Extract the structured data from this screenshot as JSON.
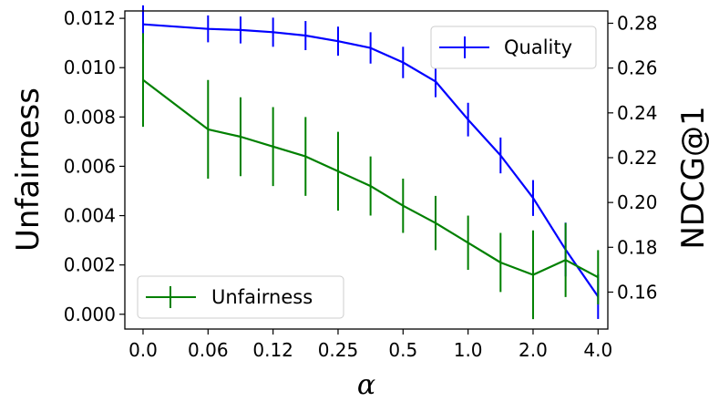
{
  "chart_data": {
    "type": "line",
    "xlabel": "α",
    "x_categories": [
      "0.0",
      "0.06",
      "0.12",
      "0.25",
      "0.5",
      "1.0",
      "2.0",
      "4.0"
    ],
    "y_left": {
      "label": "Unfairness",
      "lim": [
        -0.0006,
        0.0123
      ],
      "ticks": [
        "0.000",
        "0.002",
        "0.004",
        "0.006",
        "0.008",
        "0.010",
        "0.012"
      ]
    },
    "y_right": {
      "label": "NDCG@1",
      "lim": [
        0.1435,
        0.2855
      ],
      "ticks": [
        "0.16",
        "0.18",
        "0.20",
        "0.22",
        "0.24",
        "0.26",
        "0.28"
      ]
    },
    "series": [
      {
        "name": "Quality",
        "axis": "right",
        "color": "#0000ff",
        "legend_position": "upper-right",
        "x": [
          0,
          1,
          1.5,
          2,
          2.5,
          3,
          3.5,
          4,
          4.5,
          5,
          5.5,
          6,
          6.5,
          7
        ],
        "y": [
          0.2795,
          0.2775,
          0.277,
          0.276,
          0.2745,
          0.272,
          0.269,
          0.2625,
          0.254,
          0.237,
          0.221,
          0.202,
          0.179,
          0.158
        ],
        "err": [
          0.0085,
          0.006,
          0.006,
          0.0065,
          0.0065,
          0.0065,
          0.007,
          0.007,
          0.007,
          0.0075,
          0.008,
          0.008,
          0.012,
          0.01
        ]
      },
      {
        "name": "Unfairness",
        "axis": "left",
        "color": "#008000",
        "legend_position": "lower-left",
        "x": [
          0,
          1,
          1.5,
          2,
          2.5,
          3,
          3.5,
          4,
          4.5,
          5,
          5.5,
          6,
          6.5,
          7
        ],
        "y": [
          0.0095,
          0.0075,
          0.0072,
          0.0068,
          0.0064,
          0.0058,
          0.0052,
          0.0044,
          0.0037,
          0.0029,
          0.0021,
          0.0016,
          0.0022,
          0.0015
        ],
        "err": [
          0.0019,
          0.002,
          0.0016,
          0.0016,
          0.0016,
          0.0016,
          0.0012,
          0.0011,
          0.0011,
          0.0011,
          0.0012,
          0.0018,
          0.0015,
          0.0011
        ]
      }
    ]
  }
}
